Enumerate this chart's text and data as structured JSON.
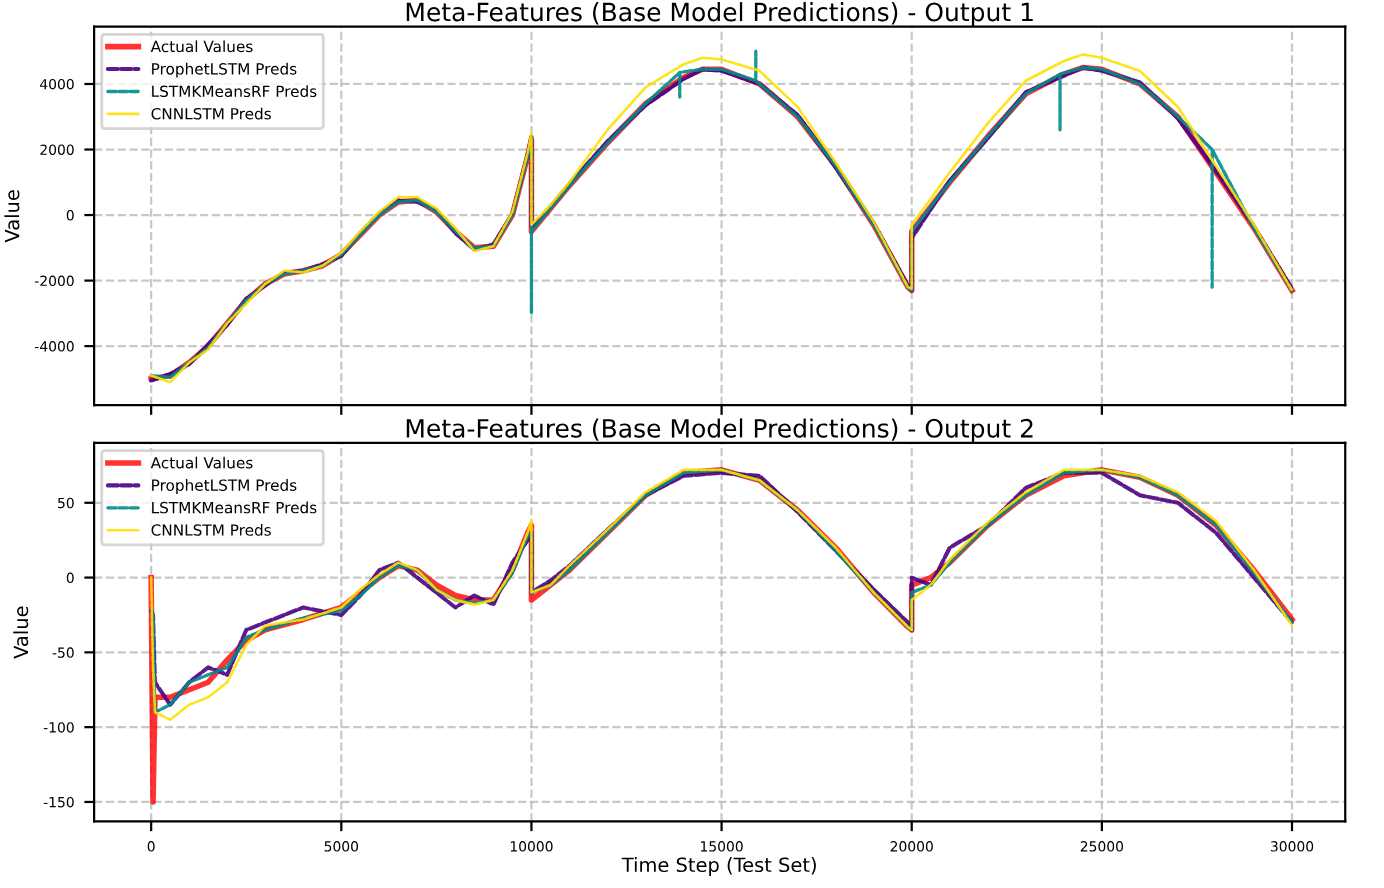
{
  "chart_data": [
    {
      "type": "line",
      "title": "Meta-Features (Base Model Predictions) - Output 1",
      "ylabel": "Value",
      "xlim": [
        -1500,
        31400
      ],
      "ylim": [
        -5800,
        5750
      ],
      "xticks": [
        0,
        5000,
        10000,
        15000,
        20000,
        25000,
        30000
      ],
      "yticks": [
        -4000,
        -2000,
        0,
        2000,
        4000
      ],
      "tick_labels": "y",
      "grid": true,
      "legend": "top left",
      "marker": "none",
      "series": [
        {
          "name": "Actual Values",
          "color": "#ff0000",
          "line_style": "solid",
          "x": [
            0,
            500,
            1000,
            1500,
            2000,
            2500,
            3000,
            3500,
            4000,
            4500,
            5000,
            5500,
            6000,
            6500,
            7000,
            7500,
            8000,
            8500,
            9000,
            9500,
            9900,
            10000,
            10000,
            10500,
            11000,
            12000,
            13000,
            14000,
            14500,
            15000,
            16000,
            17000,
            18000,
            19000,
            19900,
            20000,
            20000,
            21000,
            22000,
            23000,
            24000,
            24500,
            25000,
            26000,
            27000,
            28000,
            29000,
            30000
          ],
          "values": [
            -5000,
            -4900,
            -4500,
            -4000,
            -3300,
            -2600,
            -2100,
            -1800,
            -1700,
            -1550,
            -1200,
            -600,
            0,
            400,
            450,
            100,
            -500,
            -1000,
            -950,
            0,
            1800,
            2300,
            -500,
            200,
            900,
            2200,
            3400,
            4200,
            4450,
            4450,
            4000,
            3000,
            1500,
            -300,
            -2200,
            -2300,
            -500,
            1000,
            2400,
            3700,
            4300,
            4500,
            4450,
            4000,
            3000,
            1300,
            -400,
            -2300
          ]
        },
        {
          "name": "ProphetLSTM Preds",
          "color": "#4b0082",
          "line_style": "dashed",
          "x": [
            0,
            500,
            1000,
            1500,
            2000,
            2500,
            3000,
            3500,
            4000,
            4500,
            5000,
            5500,
            6000,
            6500,
            7000,
            7500,
            8000,
            8500,
            9000,
            9500,
            9900,
            10000,
            10000,
            10500,
            11000,
            12000,
            13000,
            14000,
            14500,
            15000,
            16000,
            17000,
            18000,
            19000,
            19900,
            20000,
            20000,
            21000,
            22000,
            23000,
            24000,
            24500,
            25000,
            26000,
            27000,
            28000,
            29000,
            30000
          ],
          "values": [
            -5050,
            -4850,
            -4550,
            -3950,
            -3350,
            -2550,
            -2150,
            -1750,
            -1700,
            -1500,
            -1250,
            -550,
            50,
            450,
            400,
            150,
            -550,
            -1050,
            -900,
            50,
            1850,
            2400,
            -400,
            250,
            950,
            2250,
            3350,
            4150,
            4450,
            4400,
            4000,
            3050,
            1450,
            -250,
            -2150,
            -2300,
            -700,
            1050,
            2350,
            3750,
            4250,
            4500,
            4400,
            4050,
            2950,
            1350,
            -350,
            -2250
          ]
        },
        {
          "name": "LSTMKMeansRF Preds",
          "color": "#008b8b",
          "line_style": "dashed",
          "x": [
            0,
            500,
            1000,
            1500,
            2000,
            2500,
            3000,
            3500,
            4000,
            4500,
            5000,
            5500,
            6000,
            6500,
            7000,
            7500,
            8000,
            8500,
            9000,
            9500,
            9900,
            10000,
            10000,
            10000,
            10500,
            11000,
            12000,
            13000,
            13900,
            13900,
            13900,
            14500,
            15000,
            15900,
            15900,
            15900,
            17000,
            18000,
            19000,
            19900,
            20000,
            20000,
            21000,
            22000,
            23000,
            23900,
            23900,
            23900,
            24500,
            25000,
            26000,
            27000,
            27900,
            27900,
            27900,
            29000,
            30000
          ],
          "values": [
            -4900,
            -4950,
            -4500,
            -4050,
            -3300,
            -2600,
            -2100,
            -1800,
            -1700,
            -1550,
            -1200,
            -600,
            0,
            400,
            450,
            100,
            -500,
            -1000,
            -950,
            0,
            1800,
            2300,
            -3000,
            -500,
            200,
            900,
            2200,
            3400,
            4350,
            3600,
            4350,
            4450,
            4450,
            4100,
            5000,
            4100,
            3000,
            1500,
            -300,
            -2200,
            -2300,
            -500,
            1000,
            2400,
            3700,
            4300,
            2600,
            4300,
            4500,
            4450,
            4000,
            3000,
            2000,
            -2200,
            2000,
            -400,
            -2300
          ]
        },
        {
          "name": "CNNLSTM Preds",
          "color": "#ffe000",
          "line_style": "dashed",
          "x": [
            0,
            500,
            1000,
            1500,
            2000,
            2500,
            3000,
            3500,
            4000,
            4500,
            5000,
            5500,
            6000,
            6500,
            7000,
            7500,
            8000,
            8500,
            9000,
            9500,
            9900,
            10000,
            10000,
            10500,
            11000,
            12000,
            13000,
            14000,
            14500,
            15000,
            16000,
            17000,
            18000,
            19000,
            19900,
            20000,
            20000,
            21000,
            22000,
            23000,
            24000,
            24500,
            25000,
            26000,
            27000,
            28000,
            29000,
            30000
          ],
          "values": [
            -4900,
            -5100,
            -4500,
            -4100,
            -3300,
            -2700,
            -2100,
            -1700,
            -1750,
            -1550,
            -1150,
            -500,
            100,
            550,
            550,
            200,
            -400,
            -1100,
            -950,
            100,
            1900,
            2500,
            -300,
            300,
            1000,
            2600,
            3900,
            4600,
            4800,
            4750,
            4400,
            3300,
            1600,
            -200,
            -2200,
            -2250,
            -300,
            1300,
            2800,
            4100,
            4700,
            4900,
            4800,
            4400,
            3300,
            1500,
            -300,
            -2300
          ]
        }
      ]
    },
    {
      "type": "line",
      "title": "Meta-Features (Base Model Predictions) - Output 2",
      "xlabel": "Time Step (Test Set)",
      "ylabel": "Value",
      "xlim": [
        -1500,
        31400
      ],
      "ylim": [
        -163,
        90
      ],
      "xticks": [
        0,
        5000,
        10000,
        15000,
        20000,
        25000,
        30000
      ],
      "yticks": [
        -150,
        -100,
        -50,
        0,
        50
      ],
      "grid": true,
      "legend": "top left",
      "marker": "none",
      "series": [
        {
          "name": "Actual Values",
          "color": "#ff0000",
          "line_style": "solid",
          "x": [
            0,
            50,
            100,
            500,
            1000,
            1500,
            2000,
            2500,
            3000,
            4000,
            5000,
            5500,
            6000,
            6500,
            7000,
            7500,
            8000,
            8500,
            9000,
            9500,
            9900,
            10000,
            10000,
            10500,
            11000,
            12000,
            13000,
            14000,
            15000,
            16000,
            17000,
            18000,
            19000,
            19900,
            20000,
            20000,
            20500,
            21000,
            22000,
            23000,
            24000,
            25000,
            26000,
            27000,
            28000,
            29000,
            30000
          ],
          "values": [
            0,
            -150,
            -80,
            -80,
            -75,
            -70,
            -55,
            -42,
            -35,
            -28,
            -20,
            -10,
            0,
            8,
            5,
            -5,
            -12,
            -15,
            -15,
            5,
            30,
            35,
            -15,
            -5,
            5,
            30,
            55,
            70,
            72,
            65,
            45,
            20,
            -10,
            -33,
            -35,
            -5,
            0,
            10,
            35,
            55,
            68,
            72,
            67,
            55,
            35,
            5,
            -28
          ]
        },
        {
          "name": "ProphetLSTM Preds",
          "color": "#4b0082",
          "line_style": "dashed",
          "x": [
            0,
            50,
            100,
            500,
            1000,
            1500,
            2000,
            2500,
            3000,
            4000,
            5000,
            5500,
            6000,
            6500,
            7000,
            7500,
            8000,
            8500,
            9000,
            9500,
            9900,
            10000,
            10000,
            10500,
            11000,
            12000,
            13000,
            14000,
            15000,
            16000,
            17000,
            18000,
            19000,
            19900,
            20000,
            20000,
            20500,
            21000,
            22000,
            23000,
            24000,
            25000,
            26000,
            27000,
            28000,
            29000,
            30000
          ],
          "values": [
            -22,
            -25,
            -70,
            -85,
            -70,
            -60,
            -65,
            -35,
            -30,
            -20,
            -25,
            -12,
            5,
            10,
            0,
            -10,
            -20,
            -12,
            -18,
            10,
            25,
            30,
            -10,
            -2,
            8,
            32,
            55,
            68,
            70,
            68,
            44,
            18,
            -8,
            -30,
            -35,
            0,
            -5,
            20,
            35,
            60,
            70,
            70,
            55,
            50,
            30,
            0,
            -30
          ]
        },
        {
          "name": "LSTMKMeansRF Preds",
          "color": "#008b8b",
          "line_style": "dashed",
          "x": [
            0,
            50,
            100,
            500,
            1000,
            1500,
            2000,
            2500,
            3000,
            4000,
            5000,
            5500,
            6000,
            6500,
            7000,
            7500,
            8000,
            8500,
            9000,
            9500,
            9900,
            10000,
            10000,
            10500,
            11000,
            12000,
            13000,
            14000,
            15000,
            16000,
            17000,
            18000,
            19000,
            19900,
            20000,
            20000,
            20500,
            21000,
            22000,
            23000,
            24000,
            25000,
            26000,
            27000,
            28000,
            29000,
            30000
          ],
          "values": [
            -22,
            -25,
            -90,
            -85,
            -70,
            -65,
            -60,
            -40,
            -35,
            -27,
            -22,
            -12,
            0,
            8,
            5,
            -8,
            -15,
            -17,
            -15,
            3,
            28,
            30,
            -10,
            -5,
            5,
            30,
            55,
            70,
            72,
            65,
            45,
            18,
            -10,
            -33,
            -35,
            -10,
            -5,
            10,
            35,
            55,
            70,
            72,
            67,
            55,
            35,
            3,
            -30
          ]
        },
        {
          "name": "CNNLSTM Preds",
          "color": "#ffe000",
          "line_style": "dashed",
          "x": [
            0,
            50,
            100,
            500,
            1000,
            1500,
            2000,
            2500,
            3000,
            4000,
            5000,
            5500,
            6000,
            6500,
            7000,
            7500,
            8000,
            8500,
            9000,
            9500,
            9900,
            10000,
            10000,
            10500,
            11000,
            12000,
            13000,
            14000,
            15000,
            16000,
            17000,
            18000,
            19000,
            19900,
            20000,
            20000,
            20500,
            21000,
            22000,
            23000,
            24000,
            25000,
            26000,
            27000,
            28000,
            29000,
            30000
          ],
          "values": [
            0,
            -60,
            -90,
            -95,
            -85,
            -80,
            -70,
            -45,
            -32,
            -28,
            -20,
            -8,
            2,
            10,
            5,
            -8,
            -15,
            -18,
            -15,
            5,
            30,
            38,
            -10,
            -5,
            8,
            32,
            57,
            72,
            72,
            65,
            45,
            20,
            -10,
            -33,
            -35,
            -15,
            -5,
            12,
            37,
            57,
            72,
            72,
            68,
            57,
            38,
            5,
            -32
          ]
        }
      ]
    }
  ]
}
